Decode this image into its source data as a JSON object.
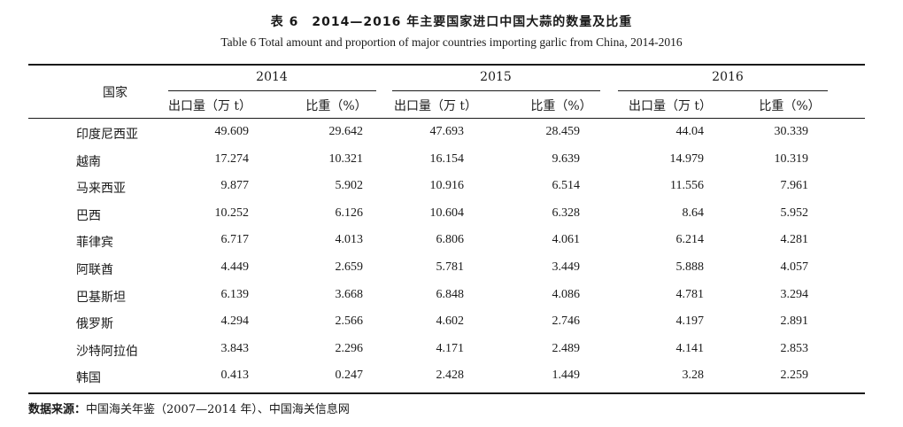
{
  "title_cn": "表 6　2014—2016 年主要国家进口中国大蒜的数量及比重",
  "title_en": "Table 6  Total amount and proportion of major countries importing garlic from China, 2014-2016",
  "header": {
    "country": "国家",
    "years": [
      "2014",
      "2015",
      "2016"
    ],
    "col_qty": "出口量（万 t）",
    "col_share": "比重（%）"
  },
  "rows": [
    {
      "country": "印度尼西亚",
      "v": [
        "49.609",
        "29.642",
        "47.693",
        "28.459",
        "44.04",
        "30.339"
      ]
    },
    {
      "country": "越南",
      "v": [
        "17.274",
        "10.321",
        "16.154",
        "9.639",
        "14.979",
        "10.319"
      ]
    },
    {
      "country": "马来西亚",
      "v": [
        "9.877",
        "5.902",
        "10.916",
        "6.514",
        "11.556",
        "7.961"
      ]
    },
    {
      "country": "巴西",
      "v": [
        "10.252",
        "6.126",
        "10.604",
        "6.328",
        "8.64",
        "5.952"
      ]
    },
    {
      "country": "菲律宾",
      "v": [
        "6.717",
        "4.013",
        "6.806",
        "4.061",
        "6.214",
        "4.281"
      ]
    },
    {
      "country": "阿联酋",
      "v": [
        "4.449",
        "2.659",
        "5.781",
        "3.449",
        "5.888",
        "4.057"
      ]
    },
    {
      "country": "巴基斯坦",
      "v": [
        "6.139",
        "3.668",
        "6.848",
        "4.086",
        "4.781",
        "3.294"
      ]
    },
    {
      "country": "俄罗斯",
      "v": [
        "4.294",
        "2.566",
        "4.602",
        "2.746",
        "4.197",
        "2.891"
      ]
    },
    {
      "country": "沙特阿拉伯",
      "v": [
        "3.843",
        "2.296",
        "4.171",
        "2.489",
        "4.141",
        "2.853"
      ]
    },
    {
      "country": "韩国",
      "v": [
        "0.413",
        "0.247",
        "2.428",
        "1.449",
        "3.28",
        "2.259"
      ]
    }
  ],
  "source": {
    "label": "数据来源：",
    "text": "中国海关年鉴（2007—2014 年）、中国海关信息网"
  }
}
